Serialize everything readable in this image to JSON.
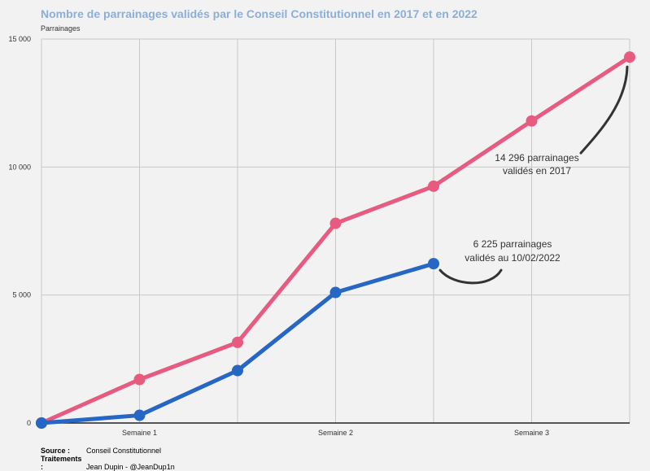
{
  "chart_data": {
    "type": "line",
    "title": "Nombre de parrainages validés par le Conseil Constitutionnel en 2017 et en 2022",
    "ylabel": "Parrainages",
    "ylim": [
      0,
      15000
    ],
    "yticks": [
      0,
      5000,
      10000,
      15000
    ],
    "ytick_labels": [
      "0",
      "5 000",
      "10 000",
      "15 000"
    ],
    "xtick_labels": [
      "Semaine 1",
      "Semaine 2",
      "Semaine 3"
    ],
    "x_points": 7,
    "grid": true,
    "series": [
      {
        "values": [
          0,
          1700,
          3150,
          7800,
          9250,
          11800,
          14296
        ],
        "color": "#e85b81"
      },
      {
        "values": [
          0,
          300,
          2050,
          5100,
          6225
        ],
        "color": "#2666c4"
      }
    ],
    "annotations": [
      {
        "lines": [
          "14 296 parrainages",
          "validés en 2017"
        ]
      },
      {
        "lines": [
          "6 225 parrainages",
          "validés au 10/02/2022"
        ]
      }
    ]
  },
  "footer": {
    "source_label": "Source :",
    "source_value": "Conseil Constitutionnel",
    "treatment_label": "Traitements :",
    "treatment_value": "Jean Dupin - @JeanDup1n"
  }
}
